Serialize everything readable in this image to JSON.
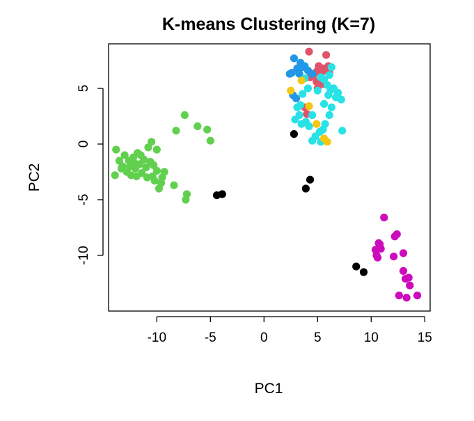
{
  "chart_data": {
    "type": "scatter",
    "title": "K-means Clustering (K=7)",
    "xlabel": "PC1",
    "ylabel": "PC2",
    "xlim": [
      -14.5,
      15.5
    ],
    "ylim": [
      -15,
      9
    ],
    "xticks": [
      -10,
      -5,
      0,
      5,
      10,
      15
    ],
    "yticks": [
      -10,
      -5,
      0,
      5
    ],
    "grid": false,
    "legend": "none",
    "series": [
      {
        "color": "#61D04F",
        "points": [
          [
            -13.8,
            -0.5
          ],
          [
            -13.9,
            -2.8
          ],
          [
            -13.5,
            -1.5
          ],
          [
            -13.2,
            -2.0
          ],
          [
            -13.0,
            -1.0
          ],
          [
            -12.8,
            -2.5
          ],
          [
            -12.6,
            -1.5
          ],
          [
            -12.4,
            -2.8
          ],
          [
            -12.2,
            -1.2
          ],
          [
            -12.0,
            -2.2
          ],
          [
            -11.8,
            -0.8
          ],
          [
            -11.6,
            -1.8
          ],
          [
            -11.4,
            -2.6
          ],
          [
            -11.2,
            -1.4
          ],
          [
            -11.0,
            -2.1
          ],
          [
            -10.8,
            -0.3
          ],
          [
            -10.6,
            -1.6
          ],
          [
            -10.4,
            -2.9
          ],
          [
            -10.3,
            -1.9
          ],
          [
            -10.9,
            -3.0
          ],
          [
            -11.9,
            -2.9
          ],
          [
            -12.5,
            -2.0
          ],
          [
            -13.3,
            -2.2
          ],
          [
            -11.5,
            -1.0
          ],
          [
            -12.1,
            -1.7
          ],
          [
            -10.2,
            -3.3
          ],
          [
            -9.8,
            -4.0
          ],
          [
            -9.6,
            -3.5
          ],
          [
            -9.3,
            -2.5
          ],
          [
            -9.5,
            -3.0
          ],
          [
            -10.0,
            -2.4
          ],
          [
            -10.5,
            0.2
          ],
          [
            -10.0,
            -0.5
          ],
          [
            -8.4,
            -3.7
          ],
          [
            -8.2,
            1.2
          ],
          [
            -7.4,
            2.6
          ],
          [
            -6.2,
            1.6
          ],
          [
            -5.3,
            1.3
          ],
          [
            -5.0,
            0.3
          ],
          [
            -7.2,
            -4.5
          ],
          [
            -7.3,
            -5.0
          ]
        ]
      },
      {
        "color": "#000000",
        "points": [
          [
            -4.4,
            -4.6
          ],
          [
            -3.9,
            -4.5
          ],
          [
            2.8,
            0.9
          ],
          [
            3.9,
            -4.0
          ],
          [
            4.3,
            -3.2
          ],
          [
            8.6,
            -11.0
          ],
          [
            9.3,
            -11.5
          ]
        ]
      },
      {
        "color": "#DF536B",
        "points": [
          [
            4.2,
            8.3
          ],
          [
            5.8,
            8.0
          ],
          [
            5.0,
            6.6
          ],
          [
            5.5,
            6.8
          ],
          [
            6.0,
            7.0
          ],
          [
            4.6,
            6.2
          ],
          [
            4.9,
            5.6
          ],
          [
            5.3,
            6.2
          ],
          [
            6.1,
            6.4
          ],
          [
            5.1,
            7.0
          ],
          [
            4.3,
            6.0
          ],
          [
            5.6,
            6.6
          ],
          [
            3.8,
            3.3
          ],
          [
            5.5,
            5.4
          ],
          [
            4.0,
            2.7
          ],
          [
            5.0,
            5.0
          ],
          [
            4.8,
            6.4
          ]
        ]
      },
      {
        "color": "#2297E6",
        "points": [
          [
            2.8,
            7.7
          ],
          [
            3.4,
            7.3
          ],
          [
            3.1,
            6.8
          ],
          [
            2.6,
            6.4
          ],
          [
            3.3,
            6.3
          ],
          [
            4.1,
            6.6
          ],
          [
            3.8,
            7.0
          ],
          [
            2.4,
            6.3
          ],
          [
            2.7,
            4.4
          ],
          [
            3.0,
            4.1
          ],
          [
            3.6,
            6.9
          ],
          [
            4.5,
            6.3
          ]
        ]
      },
      {
        "color": "#28E2E5",
        "points": [
          [
            6.3,
            6.9
          ],
          [
            6.1,
            6.2
          ],
          [
            5.6,
            5.8
          ],
          [
            5.9,
            5.3
          ],
          [
            6.5,
            5.0
          ],
          [
            6.9,
            4.6
          ],
          [
            7.2,
            4.0
          ],
          [
            6.0,
            4.4
          ],
          [
            5.6,
            3.6
          ],
          [
            6.3,
            3.3
          ],
          [
            6.1,
            2.6
          ],
          [
            5.7,
            1.8
          ],
          [
            5.5,
            1.3
          ],
          [
            5.2,
            1.1
          ],
          [
            4.8,
            0.7
          ],
          [
            4.5,
            0.3
          ],
          [
            5.3,
            0.2
          ],
          [
            4.2,
            1.6
          ],
          [
            3.9,
            2.0
          ],
          [
            3.5,
            1.8
          ],
          [
            3.3,
            2.6
          ],
          [
            2.9,
            2.2
          ],
          [
            3.1,
            3.3
          ],
          [
            3.4,
            3.5
          ],
          [
            4.5,
            2.6
          ],
          [
            6.7,
            4.2
          ],
          [
            7.3,
            1.2
          ],
          [
            4.1,
            5.0
          ],
          [
            5.0,
            4.8
          ],
          [
            6.2,
            4.8
          ],
          [
            5.3,
            6.0
          ],
          [
            3.6,
            4.5
          ],
          [
            3.8,
            5.9
          ]
        ]
      },
      {
        "color": "#F5C710",
        "points": [
          [
            3.5,
            5.7
          ],
          [
            2.5,
            4.8
          ],
          [
            4.2,
            3.4
          ],
          [
            4.9,
            1.8
          ],
          [
            5.6,
            0.5
          ],
          [
            5.9,
            0.2
          ]
        ]
      },
      {
        "color": "#CD0BBC",
        "points": [
          [
            11.2,
            -6.6
          ],
          [
            10.7,
            -8.9
          ],
          [
            10.4,
            -9.5
          ],
          [
            10.6,
            -10.2
          ],
          [
            10.8,
            -9.0
          ],
          [
            12.4,
            -8.1
          ],
          [
            12.2,
            -8.3
          ],
          [
            13.0,
            -9.8
          ],
          [
            12.1,
            -10.1
          ],
          [
            13.0,
            -11.4
          ],
          [
            13.2,
            -12.1
          ],
          [
            13.5,
            -12.0
          ],
          [
            13.6,
            -12.7
          ],
          [
            12.6,
            -13.6
          ],
          [
            13.3,
            -13.8
          ],
          [
            14.3,
            -13.6
          ],
          [
            10.5,
            -10.0
          ],
          [
            10.9,
            -9.4
          ]
        ]
      }
    ]
  }
}
